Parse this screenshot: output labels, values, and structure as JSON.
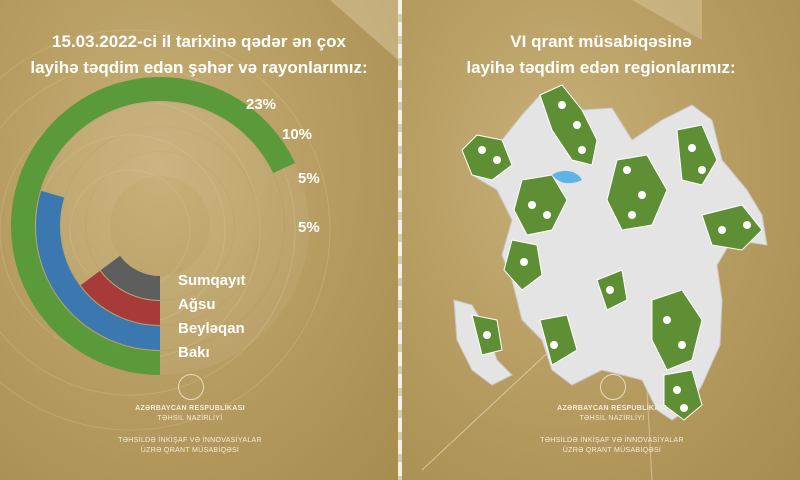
{
  "left": {
    "title_line1": "15.03.2022-ci il tarixinə qədər ən çox",
    "title_line2": "layihə təqdim edən şəhər və rayonlarımız:",
    "footer_org_line1": "AZƏRBAYCAN RESPUBLİKASI",
    "footer_org_line2": "TƏHSİL NAZİRLİYİ",
    "footer_sub_line1": "TƏHSİLDƏ İNKİŞAF VƏ İNNOVASİYALAR",
    "footer_sub_line2": "ÜZRƏ QRANT MÜSABİQƏSİ"
  },
  "right": {
    "title_line1": "VI qrant müsabiqəsinə",
    "title_line2": "layihə təqdim edən regionlarımız:",
    "footer_org_line1": "AZƏRBAYCAN RESPUBLİKASI",
    "footer_org_line2": "TƏHSİL NAZİRLİYİ",
    "footer_sub_line1": "TƏHSİLDƏ İNKİŞAF VƏ İNNOVASİYALAR",
    "footer_sub_line2": "ÜZRƏ QRANT MÜSABİQƏSİ"
  },
  "chart_data": {
    "type": "radial-bar",
    "categories": [
      "Sumqayıt",
      "Ağsu",
      "Beyləqan",
      "Bakı"
    ],
    "values": [
      5,
      5,
      10,
      23
    ],
    "value_labels": [
      "5%",
      "5%",
      "10%",
      "23%"
    ],
    "colors": [
      "#5e5e5e",
      "#a83a3a",
      "#3c78b0",
      "#5a9a3a"
    ],
    "ylim": [
      0,
      23
    ]
  }
}
